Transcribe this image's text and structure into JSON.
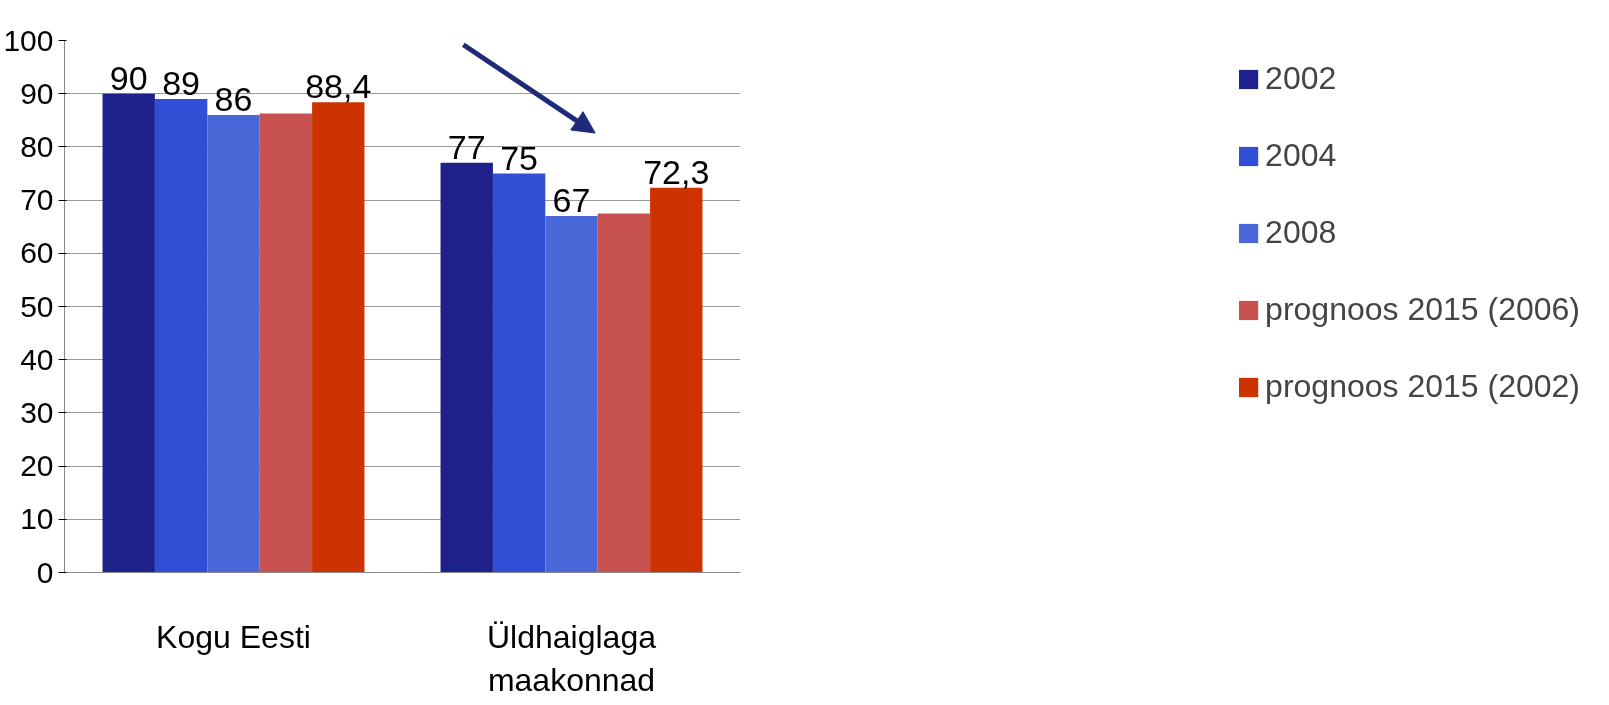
{
  "chart_data": {
    "type": "bar",
    "categories": [
      "Kogu Eesti",
      "Üldhaiglaga maakonnad"
    ],
    "series": [
      {
        "name": "2002",
        "color": "#1f218a",
        "values": [
          90,
          77
        ],
        "value_labels": [
          "90",
          "77"
        ]
      },
      {
        "name": "2004",
        "color": "#2f4fd4",
        "values": [
          89,
          75
        ],
        "value_labels": [
          "89",
          "75"
        ]
      },
      {
        "name": "2008",
        "color": "#4a67d8",
        "values": [
          86,
          67
        ],
        "value_labels": [
          "86",
          "67"
        ]
      },
      {
        "name": "prognoos 2015 (2006)",
        "color": "#c85250",
        "values": [
          86.3,
          67.5
        ],
        "value_labels": [
          null,
          null
        ]
      },
      {
        "name": "prognoos 2015 (2002)",
        "color": "#cc3300",
        "values": [
          88.4,
          72.3
        ],
        "value_labels": [
          "88,4",
          "72,3"
        ]
      }
    ],
    "ylim": [
      0,
      100
    ],
    "yticks": [
      0,
      10,
      20,
      30,
      40,
      50,
      60,
      70,
      80,
      90,
      100
    ],
    "grid": "y",
    "legend": "right"
  }
}
